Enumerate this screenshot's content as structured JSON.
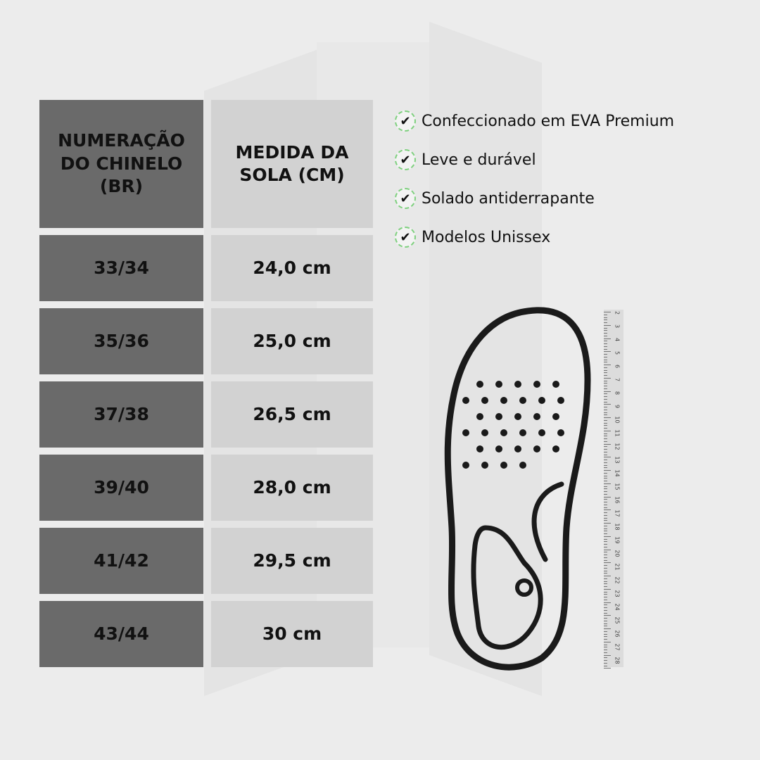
{
  "table": {
    "headers": [
      "NUMERAÇÃO DO CHINELO (BR)",
      "MEDIDA DA SOLA (CM)"
    ],
    "rows": [
      {
        "size": "33/34",
        "length": "24,0 cm"
      },
      {
        "size": "35/36",
        "length": "25,0 cm"
      },
      {
        "size": "37/38",
        "length": "26,5 cm"
      },
      {
        "size": "39/40",
        "length": "28,0 cm"
      },
      {
        "size": "41/42",
        "length": "29,5 cm"
      },
      {
        "size": "43/44",
        "length": "30 cm"
      }
    ]
  },
  "features": [
    {
      "icon": "check-icon",
      "label": "Confeccionado em EVA Premium"
    },
    {
      "icon": "check-icon",
      "label": "Leve e durável"
    },
    {
      "icon": "check-icon",
      "label": "Solado antiderrapante"
    },
    {
      "icon": "check-icon",
      "label": "Modelos Unissex"
    }
  ],
  "ruler": {
    "labels": [
      "2",
      "3",
      "4",
      "5",
      "6",
      "7",
      "8",
      "9",
      "10",
      "11",
      "12",
      "13",
      "14",
      "15",
      "16",
      "17",
      "18",
      "19",
      "20",
      "21",
      "22",
      "23",
      "24",
      "25",
      "26",
      "27",
      "28"
    ]
  },
  "colors": {
    "size_column": "#6a6a6a",
    "length_column": "#d2d2d2",
    "check_ring": "#7fd07f",
    "background": "#ececec"
  }
}
